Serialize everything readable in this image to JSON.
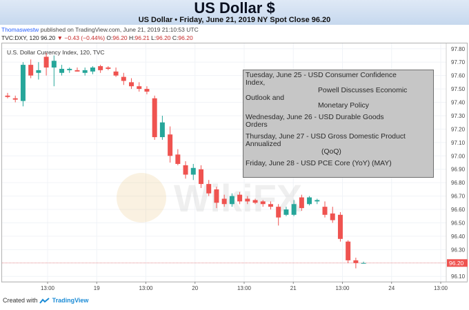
{
  "header": {
    "title": "US Dollar $",
    "subtitle": "US Dollar • Friday, June 21, 2019 NY Spot Close 96.20"
  },
  "meta": {
    "user": "Thomaswestw",
    "published": " published on TradingView.com, June 21, 2019 21:10:53 UTC"
  },
  "ohlc": {
    "symbol": "TVC:DXY, 120 ",
    "last": "96.20 ",
    "change": "▼ −0.43 (−0.44%)",
    "open_label": " O:",
    "open": "96.20",
    "high_label": " H:",
    "high": "96.21",
    "low_label": " L:",
    "low": "96.20",
    "close_label": " C:",
    "close": "96.20"
  },
  "chart_label": "U.S. Dollar Currency Index, 120, TVC",
  "watermark": "WikiFX",
  "events": {
    "e1a": "Tuesday, June 25 - USD Consumer Confidence",
    "e1b": "Index,",
    "e1c": "Powell Discusses Economic",
    "e1d": "Outlook and",
    "e1e": "Monetary Policy",
    "e2a": "Wednesday, June 26 - USD Durable Goods",
    "e2b": "Orders",
    "e3a": "Thursday, June 27 - USD Gross Domestic Product",
    "e3b": "Annualized",
    "e3c": "(QoQ)",
    "e4": "Friday, June 28 - USD PCE Core (YoY) (MAY)"
  },
  "footer": {
    "created": "Created with",
    "brand": "TradingView"
  },
  "chart_data": {
    "type": "candlestick",
    "title": "U.S. Dollar Currency Index, 120, TVC",
    "x_tick_labels": [
      "13:00",
      "19",
      "13:00",
      "20",
      "13:00",
      "21",
      "13:00",
      "24",
      "13:00"
    ],
    "ylim": [
      96.06,
      97.84
    ],
    "y_ticks": [
      96.1,
      96.2,
      96.3,
      96.4,
      96.5,
      96.6,
      96.7,
      96.8,
      96.9,
      97.0,
      97.1,
      97.2,
      97.3,
      97.4,
      97.5,
      97.6,
      97.7,
      97.8
    ],
    "y_tick_labels": [
      "96.10",
      "96.20",
      "96.30",
      "96.40",
      "96.50",
      "96.60",
      "96.70",
      "96.80",
      "96.90",
      "97.00",
      "97.10",
      "97.20",
      "97.30",
      "97.40",
      "97.50",
      "97.60",
      "97.70",
      "97.80"
    ],
    "last_price": 96.2,
    "last_price_label": "96.20",
    "up_color": "#26a69a",
    "down_color": "#ef5350",
    "candles": [
      {
        "o": 97.45,
        "h": 97.47,
        "l": 97.43,
        "c": 97.44
      },
      {
        "o": 97.43,
        "h": 97.45,
        "l": 97.4,
        "c": 97.42
      },
      {
        "o": 97.41,
        "h": 97.7,
        "l": 97.37,
        "c": 97.68
      },
      {
        "o": 97.68,
        "h": 97.72,
        "l": 97.58,
        "c": 97.6
      },
      {
        "o": 97.62,
        "h": 97.7,
        "l": 97.57,
        "c": 97.64
      },
      {
        "o": 97.74,
        "h": 97.77,
        "l": 97.6,
        "c": 97.66
      },
      {
        "o": 97.66,
        "h": 97.75,
        "l": 97.52,
        "c": 97.71
      },
      {
        "o": 97.62,
        "h": 97.68,
        "l": 97.6,
        "c": 97.65
      },
      {
        "o": 97.64,
        "h": 97.66,
        "l": 97.62,
        "c": 97.65
      },
      {
        "o": 97.64,
        "h": 97.66,
        "l": 97.63,
        "c": 97.63
      },
      {
        "o": 97.62,
        "h": 97.66,
        "l": 97.6,
        "c": 97.64
      },
      {
        "o": 97.63,
        "h": 97.67,
        "l": 97.61,
        "c": 97.66
      },
      {
        "o": 97.67,
        "h": 97.68,
        "l": 97.62,
        "c": 97.64
      },
      {
        "o": 97.66,
        "h": 97.67,
        "l": 97.64,
        "c": 97.65
      },
      {
        "o": 97.63,
        "h": 97.66,
        "l": 97.59,
        "c": 97.6
      },
      {
        "o": 97.59,
        "h": 97.62,
        "l": 97.53,
        "c": 97.56
      },
      {
        "o": 97.55,
        "h": 97.58,
        "l": 97.5,
        "c": 97.52
      },
      {
        "o": 97.52,
        "h": 97.55,
        "l": 97.48,
        "c": 97.5
      },
      {
        "o": 97.5,
        "h": 97.52,
        "l": 97.46,
        "c": 97.48
      },
      {
        "o": 97.43,
        "h": 97.45,
        "l": 97.12,
        "c": 97.14
      },
      {
        "o": 97.14,
        "h": 97.3,
        "l": 97.12,
        "c": 97.25
      },
      {
        "o": 97.16,
        "h": 97.22,
        "l": 96.95,
        "c": 97.0
      },
      {
        "o": 97.01,
        "h": 97.05,
        "l": 96.93,
        "c": 96.94
      },
      {
        "o": 96.93,
        "h": 96.96,
        "l": 96.83,
        "c": 96.86
      },
      {
        "o": 96.86,
        "h": 96.94,
        "l": 96.82,
        "c": 96.91
      },
      {
        "o": 96.9,
        "h": 96.93,
        "l": 96.76,
        "c": 96.79
      },
      {
        "o": 96.79,
        "h": 96.82,
        "l": 96.7,
        "c": 96.72
      },
      {
        "o": 96.75,
        "h": 96.77,
        "l": 96.61,
        "c": 96.65
      },
      {
        "o": 96.68,
        "h": 96.71,
        "l": 96.62,
        "c": 96.64
      },
      {
        "o": 96.64,
        "h": 96.72,
        "l": 96.62,
        "c": 96.7
      },
      {
        "o": 96.71,
        "h": 96.73,
        "l": 96.64,
        "c": 96.66
      },
      {
        "o": 96.68,
        "h": 96.7,
        "l": 96.64,
        "c": 96.66
      },
      {
        "o": 96.67,
        "h": 96.68,
        "l": 96.64,
        "c": 96.65
      },
      {
        "o": 96.66,
        "h": 96.67,
        "l": 96.62,
        "c": 96.64
      },
      {
        "o": 96.64,
        "h": 96.66,
        "l": 96.6,
        "c": 96.62
      },
      {
        "o": 96.62,
        "h": 96.64,
        "l": 96.48,
        "c": 96.54
      },
      {
        "o": 96.56,
        "h": 96.62,
        "l": 96.55,
        "c": 96.6
      },
      {
        "o": 96.56,
        "h": 96.67,
        "l": 96.55,
        "c": 96.64
      },
      {
        "o": 96.69,
        "h": 96.71,
        "l": 96.59,
        "c": 96.61
      },
      {
        "o": 96.64,
        "h": 96.7,
        "l": 96.63,
        "c": 96.69
      },
      {
        "o": 96.66,
        "h": 96.68,
        "l": 96.64,
        "c": 96.67
      },
      {
        "o": 96.62,
        "h": 96.66,
        "l": 96.54,
        "c": 96.56
      },
      {
        "o": 96.57,
        "h": 96.62,
        "l": 96.5,
        "c": 96.52
      },
      {
        "o": 96.56,
        "h": 96.58,
        "l": 96.36,
        "c": 96.38
      },
      {
        "o": 96.36,
        "h": 96.37,
        "l": 96.2,
        "c": 96.22
      },
      {
        "o": 96.22,
        "h": 96.24,
        "l": 96.16,
        "c": 96.2
      },
      {
        "o": 96.2,
        "h": 96.21,
        "l": 96.2,
        "c": 96.2
      }
    ]
  }
}
